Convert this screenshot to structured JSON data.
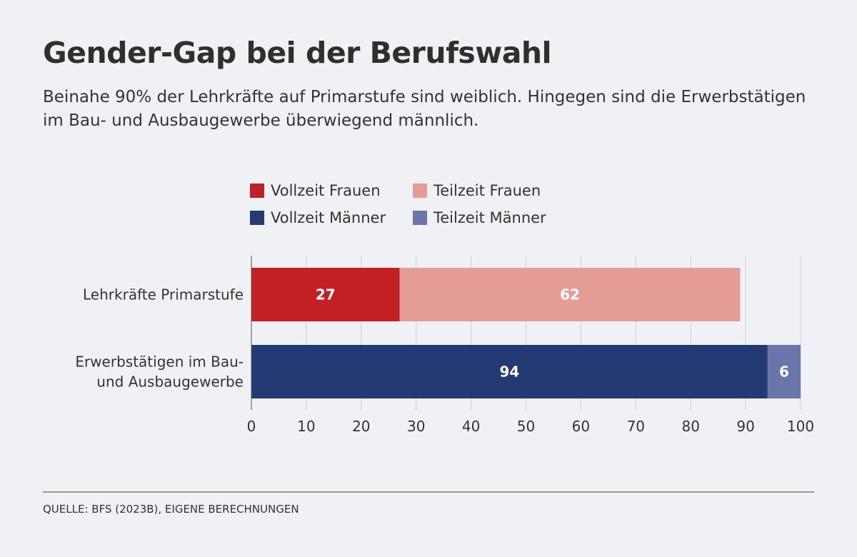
{
  "header": {
    "title": "Gender-Gap bei der Berufswahl",
    "subtitle": "Beinahe 90% der Lehrkräfte auf Primarstufe sind weiblich. Hingegen sind die Erwerbstätigen im Bau- und Ausbaugewerbe überwiegend männlich."
  },
  "footer": {
    "source": "QUELLE: BFS (2023B), EIGENE BERECHNUNGEN"
  },
  "chart_data": {
    "type": "bar",
    "orientation": "horizontal",
    "stacked": true,
    "title": "Gender-Gap bei der Berufswahl",
    "xlabel": "",
    "ylabel": "",
    "xlim": [
      0,
      100
    ],
    "x_ticks": [
      0,
      10,
      20,
      30,
      40,
      50,
      60,
      70,
      80,
      90,
      100
    ],
    "grid": true,
    "legend_position": "top",
    "categories": [
      [
        "Lehrkräfte Primarstufe"
      ],
      [
        "Erwerbstätigen im Bau-",
        "und Ausbaugewerbe"
      ]
    ],
    "series": [
      {
        "name": "Vollzeit Frauen",
        "color": "#c32026",
        "values": [
          27,
          0
        ]
      },
      {
        "name": "Teilzeit Frauen",
        "color": "#e59b96",
        "values": [
          62,
          0
        ]
      },
      {
        "name": "Vollzeit Männer",
        "color": "#243a72",
        "values": [
          0,
          94
        ]
      },
      {
        "name": "Teilzeit Männer",
        "color": "#6a76aa",
        "values": [
          0,
          6
        ]
      }
    ],
    "legend": [
      {
        "label": "Vollzeit Frauen",
        "color": "#c32026"
      },
      {
        "label": "Teilzeit Frauen",
        "color": "#e59b96"
      },
      {
        "label": "Vollzeit Männer",
        "color": "#243a72"
      },
      {
        "label": "Teilzeit Männer",
        "color": "#6a76aa"
      }
    ]
  }
}
